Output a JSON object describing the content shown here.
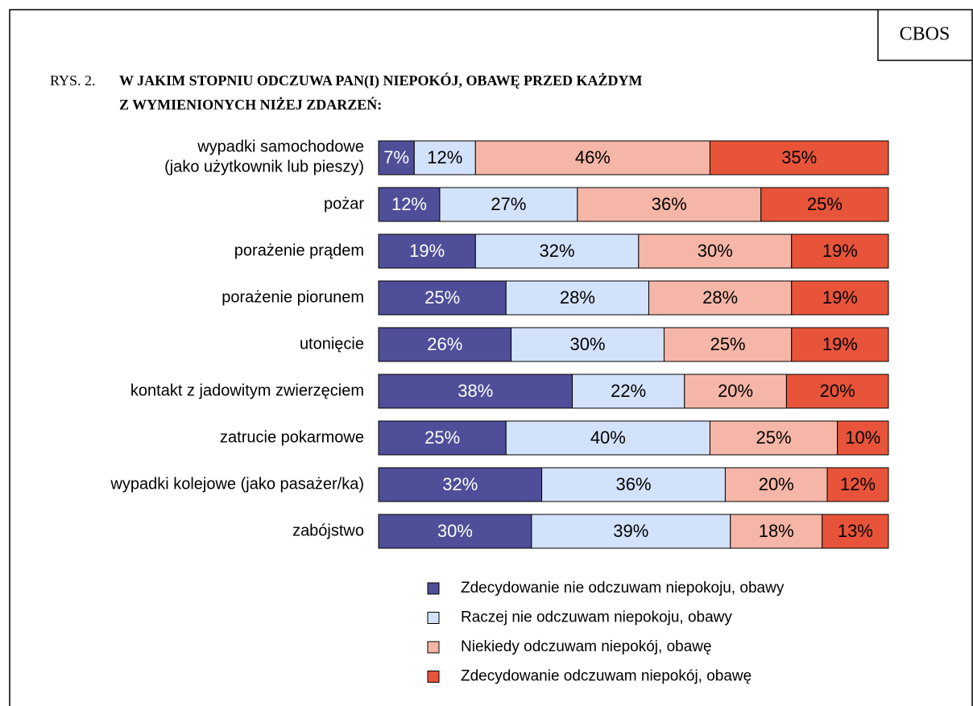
{
  "source": "CBOS",
  "chart_data": {
    "type": "bar",
    "orientation": "horizontal",
    "stacked": true,
    "figure_label": "RYS. 2.",
    "title": "W JAKIM STOPNIU ODCZUWA PAN(I) NIEPOKÓJ, OBAWĘ PRZED KAŻDYM\nZ WYMIENIONYCH NIŻEJ ZDARZEŃ:",
    "categories": [
      "wypadki samochodowe\n(jako użytkownik lub pieszy)",
      "pożar",
      "porażenie prądem",
      "porażenie piorunem",
      "utonięcie",
      "kontakt z jadowitym zwierzęciem",
      "zatrucie pokarmowe",
      "wypadki kolejowe (jako pasażer/ka)",
      "zabójstwo"
    ],
    "xlim": [
      0,
      100
    ],
    "series": [
      {
        "name": "Zdecydowanie nie odczuwam niepokoju, obawy",
        "color": "#4f4e99",
        "label_color": "#ffffff",
        "values": [
          7,
          12,
          19,
          25,
          26,
          38,
          25,
          32,
          30
        ],
        "value_labels": [
          "7%",
          "12%",
          "19%",
          "25%",
          "26%",
          "38%",
          "25%",
          "32%",
          "30%"
        ]
      },
      {
        "name": "Raczej nie odczuwam niepokoju, obawy",
        "color": "#d3e2fb",
        "label_color": "#000000",
        "values": [
          12,
          27,
          32,
          28,
          30,
          22,
          40,
          36,
          39
        ],
        "value_labels": [
          "12%",
          "27%",
          "32%",
          "28%",
          "30%",
          "22%",
          "40%",
          "36%",
          "39%"
        ]
      },
      {
        "name": "Niekiedy odczuwam niepokój, obawę",
        "color": "#f5b6a7",
        "label_color": "#000000",
        "values": [
          46,
          36,
          30,
          28,
          25,
          20,
          25,
          20,
          18
        ],
        "value_labels": [
          "46%",
          "36%",
          "30%",
          "28%",
          "25%",
          "20%",
          "25%",
          "20%",
          "18%"
        ]
      },
      {
        "name": "Zdecydowanie odczuwam niepokój, obawę",
        "color": "#e8543a",
        "label_color": "#000000",
        "values": [
          35,
          25,
          19,
          19,
          19,
          20,
          10,
          12,
          13
        ],
        "value_labels": [
          "35%",
          "25%",
          "19%",
          "19%",
          "19%",
          "20%",
          "10%",
          "12%",
          "13%"
        ]
      }
    ]
  }
}
